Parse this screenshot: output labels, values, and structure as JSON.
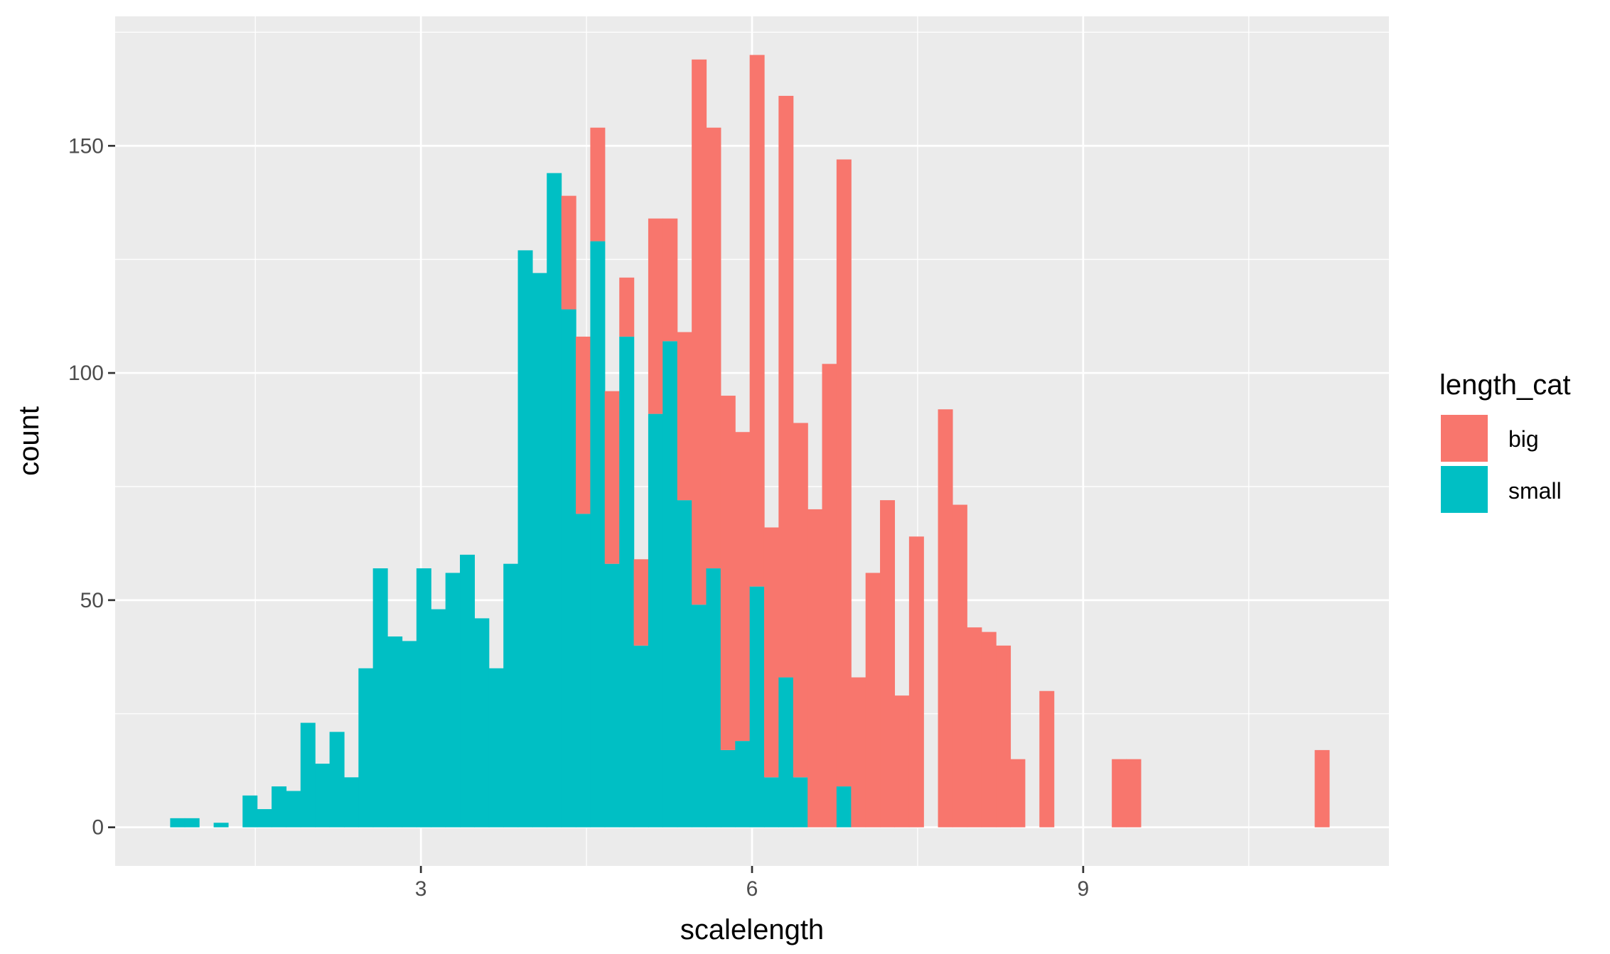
{
  "chart_data": {
    "type": "bar",
    "subtype": "stacked-histogram",
    "xlabel": "scalelength",
    "ylabel": "count",
    "xlim": [
      0.23,
      11.77
    ],
    "ylim": [
      -8.5,
      178.5
    ],
    "x_ticks": [
      3,
      6,
      9
    ],
    "x_tick_labels": [
      "3",
      "6",
      "9"
    ],
    "y_ticks": [
      0,
      50,
      100,
      150
    ],
    "y_tick_labels": [
      "0",
      "50",
      "100",
      "150"
    ],
    "grid": true,
    "legend": {
      "title": "length_cat",
      "placement": "right",
      "entries": [
        {
          "label": "big",
          "color": "#F8766D"
        },
        {
          "label": "small",
          "color": "#00BFC4"
        }
      ]
    },
    "bin_width": 0.13125,
    "x": [
      0.794,
      0.925,
      1.056,
      1.188,
      1.319,
      1.45,
      1.581,
      1.713,
      1.844,
      1.975,
      2.106,
      2.238,
      2.369,
      2.5,
      2.631,
      2.763,
      2.894,
      3.025,
      3.156,
      3.288,
      3.419,
      3.55,
      3.681,
      3.813,
      3.944,
      4.075,
      4.206,
      4.338,
      4.469,
      4.6,
      4.731,
      4.863,
      4.994,
      5.125,
      5.256,
      5.388,
      5.519,
      5.65,
      5.781,
      5.913,
      6.044,
      6.175,
      6.306,
      6.438,
      6.569,
      6.7,
      6.831,
      6.963,
      7.094,
      7.225,
      7.356,
      7.488,
      7.619,
      7.75,
      7.881,
      8.013,
      8.144,
      8.275,
      8.406,
      8.538,
      8.669,
      8.8,
      8.931,
      9.063,
      9.194,
      9.325,
      9.456,
      9.588,
      9.719,
      9.85,
      9.981,
      10.113,
      10.244,
      10.375,
      10.506,
      10.638,
      10.769,
      10.9,
      11.031,
      11.163
    ],
    "series": [
      {
        "name": "small",
        "color": "#00BFC4",
        "values": [
          2,
          2,
          0,
          1,
          0,
          7,
          4,
          9,
          8,
          23,
          14,
          21,
          11,
          35,
          57,
          42,
          41,
          57,
          48,
          56,
          60,
          46,
          35,
          58,
          127,
          122,
          144,
          114,
          69,
          129,
          58,
          108,
          40,
          91,
          107,
          72,
          49,
          57,
          17,
          19,
          53,
          11,
          33,
          11,
          0,
          0,
          9,
          0,
          0,
          0,
          0,
          0,
          0,
          0,
          0,
          0,
          0,
          0,
          0,
          0,
          0,
          0,
          0,
          0,
          0,
          0,
          0,
          0,
          0,
          0,
          0,
          0,
          0,
          0,
          0,
          0,
          0,
          0,
          0,
          0
        ]
      },
      {
        "name": "big",
        "color": "#F8766D",
        "values": [
          0,
          0,
          0,
          0,
          0,
          0,
          0,
          0,
          0,
          0,
          0,
          0,
          0,
          0,
          0,
          0,
          0,
          0,
          0,
          0,
          0,
          0,
          0,
          0,
          0,
          0,
          0,
          25,
          39,
          25,
          38,
          13,
          19,
          43,
          27,
          37,
          120,
          97,
          78,
          68,
          117,
          55,
          128,
          78,
          70,
          102,
          138,
          33,
          56,
          72,
          29,
          64,
          0,
          92,
          71,
          44,
          43,
          40,
          15,
          0,
          30,
          0,
          0,
          0,
          0,
          15,
          15,
          0,
          0,
          0,
          0,
          0,
          0,
          0,
          0,
          0,
          0,
          0,
          0,
          17
        ]
      }
    ]
  }
}
